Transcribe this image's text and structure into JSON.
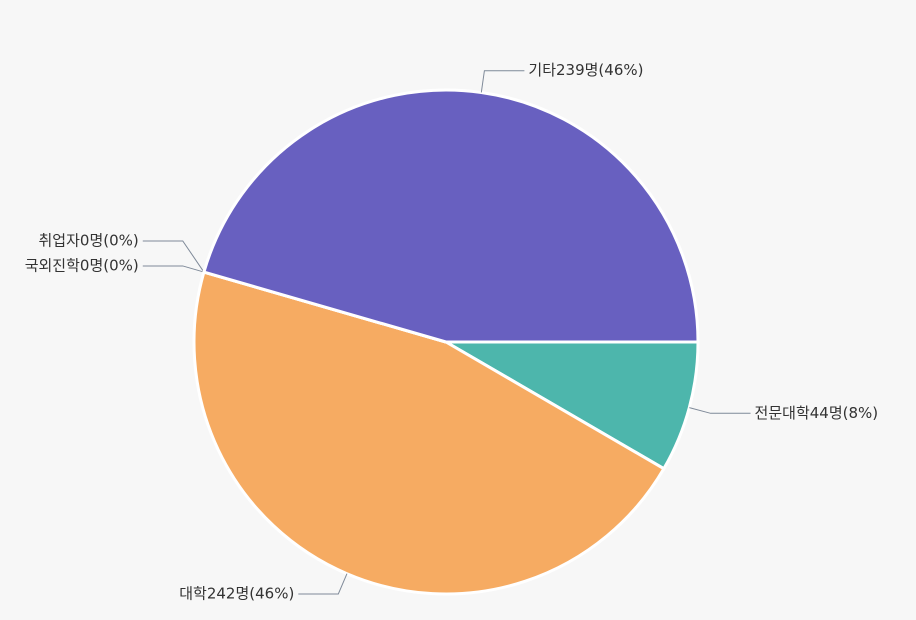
{
  "chart_data": {
    "type": "pie",
    "values": [
      44,
      242,
      0,
      0,
      239
    ],
    "value_labels": [
      "전문대학44명(8%)",
      "대학242명(46%)",
      "국외진학0명(0%)",
      "취업자0명(0%)",
      "기타239명(46%)"
    ],
    "colors": [
      "#4db6ac",
      "#f6ab62",
      "#e57373",
      "#64b5f6",
      "#6860c0"
    ]
  }
}
